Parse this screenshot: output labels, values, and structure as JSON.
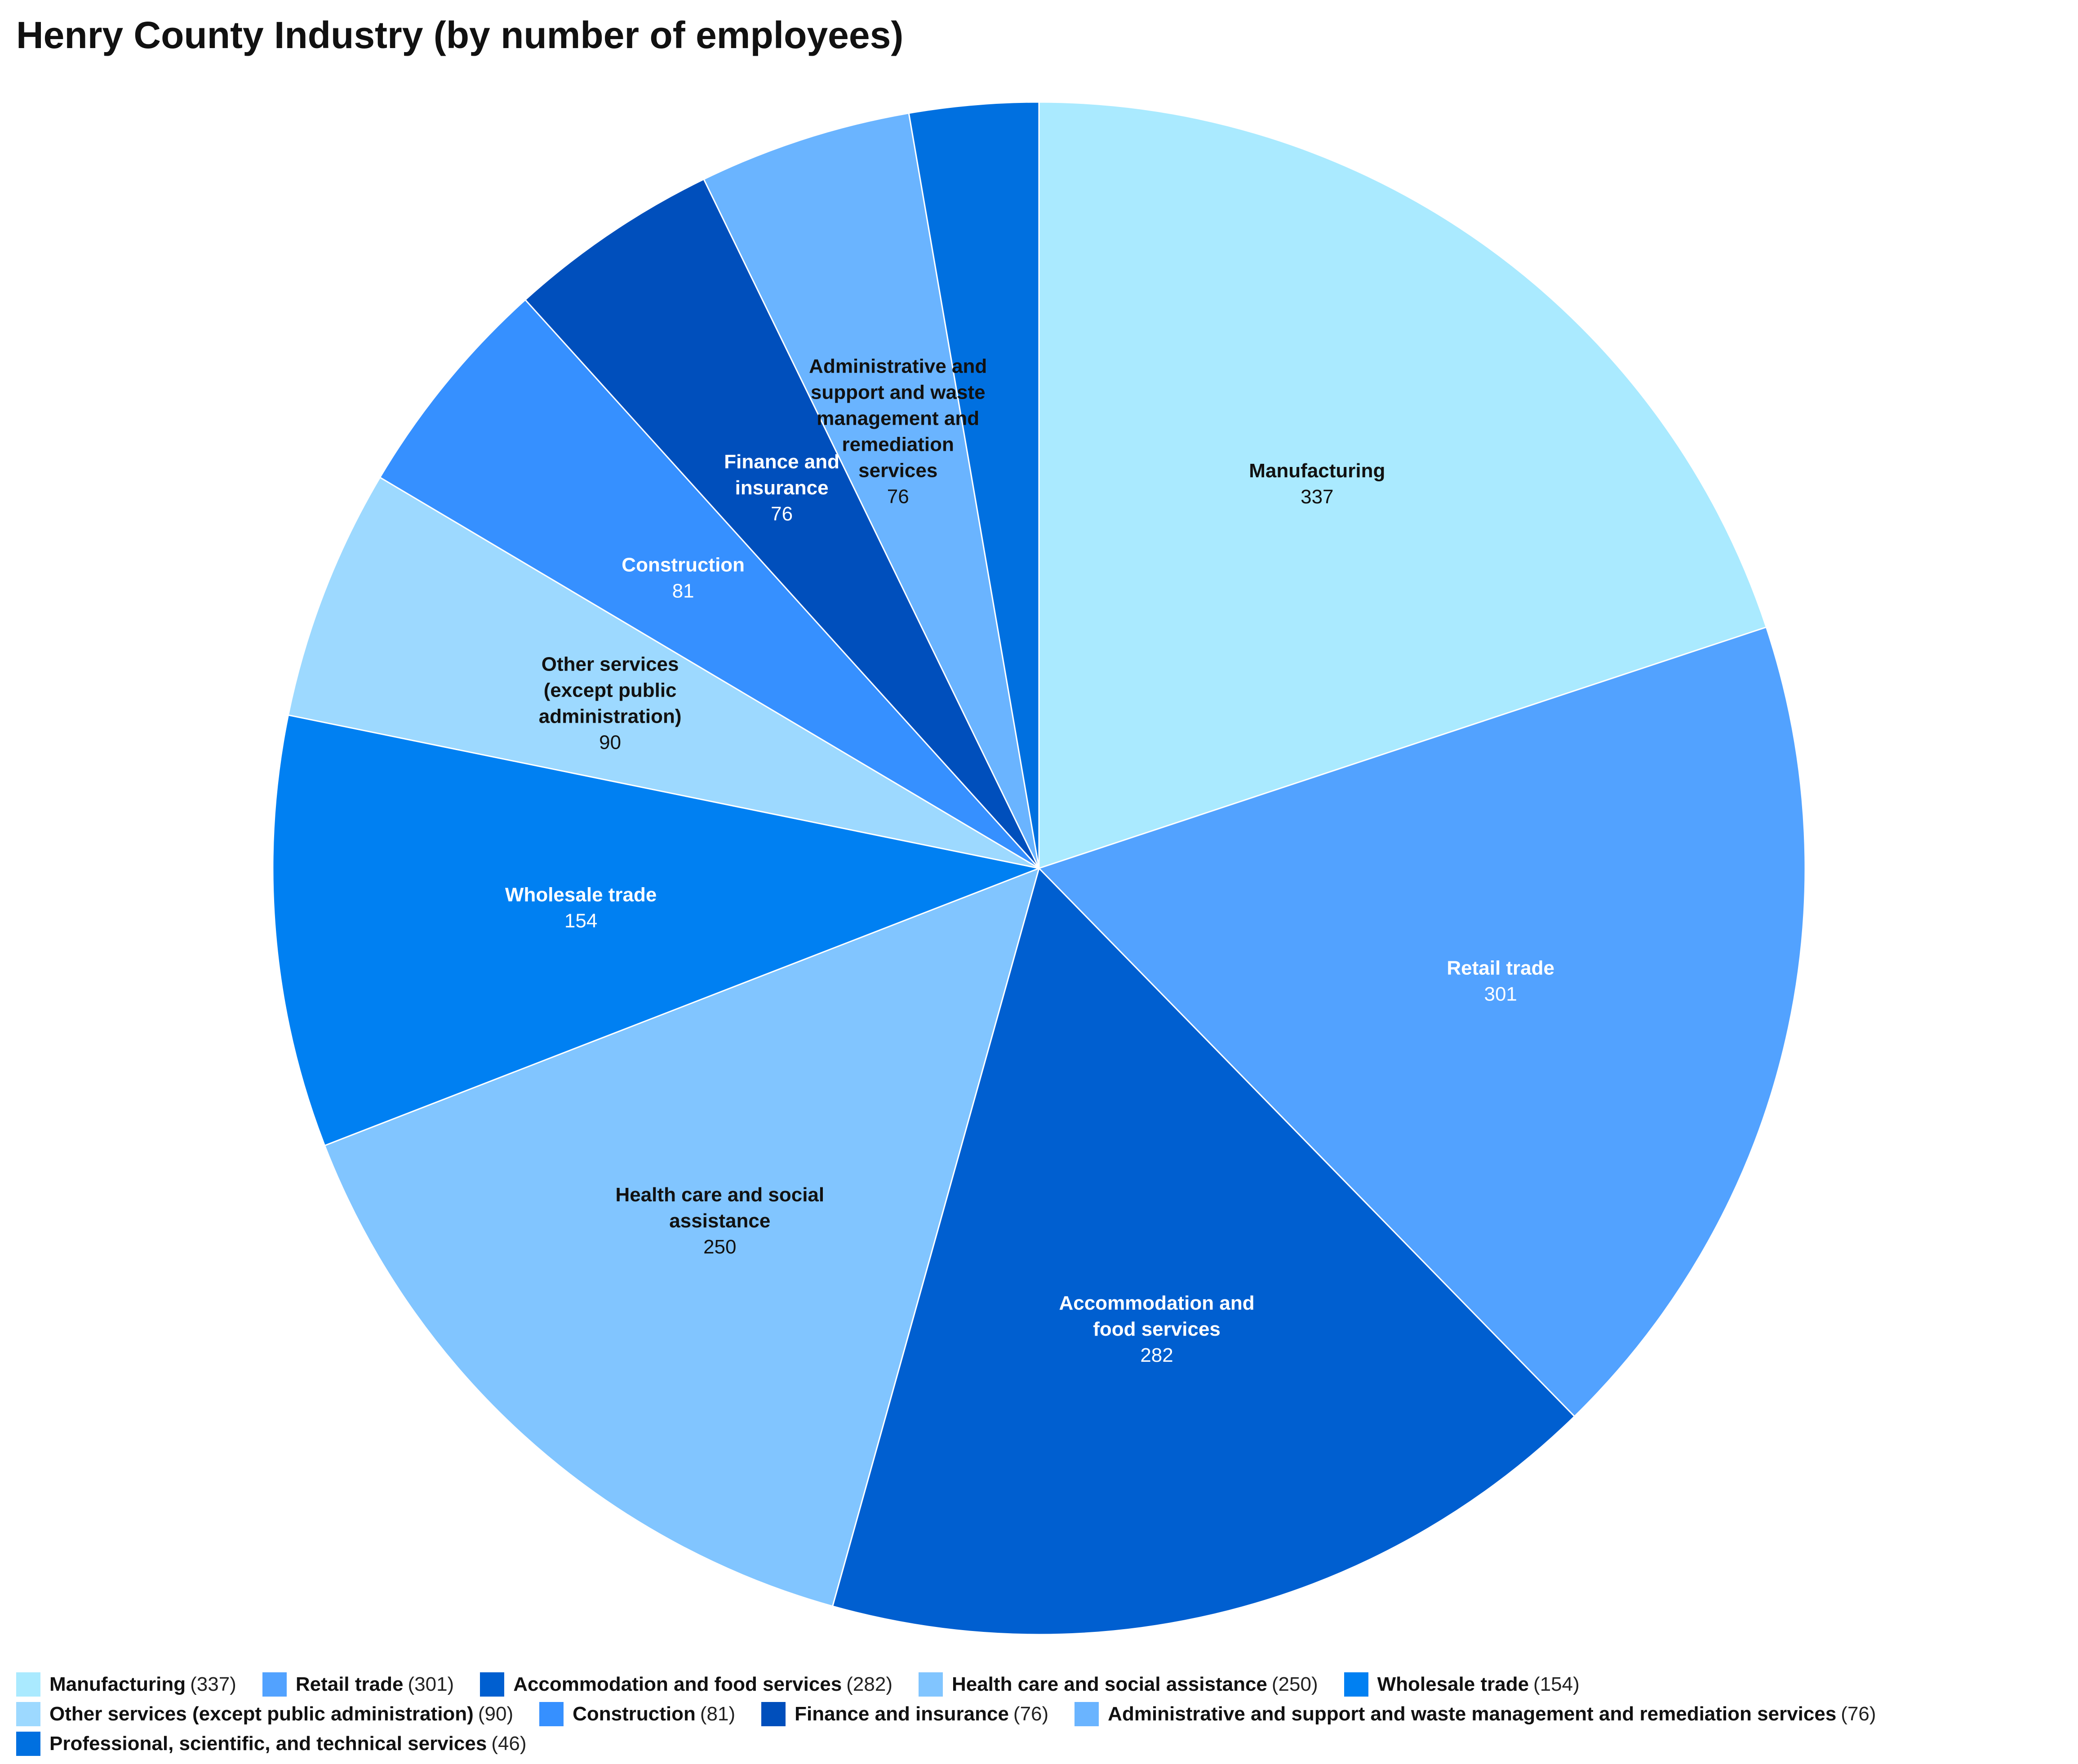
{
  "title": "Henry County Industry (by number of employees)",
  "chart_data": {
    "type": "pie",
    "title": "Henry County Industry (by number of employees)",
    "start_angle_deg": 0,
    "direction": "clockwise",
    "legend_position": "bottom",
    "slices": [
      {
        "label": "Manufacturing",
        "value": 337,
        "color": "#aaeaff",
        "text_color": "#111111"
      },
      {
        "label": "Retail trade",
        "value": 301,
        "color": "#52a2ff",
        "text_color": "#ffffff"
      },
      {
        "label": "Accommodation and food services",
        "value": 282,
        "color": "#005fd0",
        "text_color": "#ffffff"
      },
      {
        "label": "Health care and social assistance",
        "value": 250,
        "color": "#81c5ff",
        "text_color": "#111111"
      },
      {
        "label": "Wholesale trade",
        "value": 154,
        "color": "#0080f2",
        "text_color": "#ffffff"
      },
      {
        "label": "Other services (except public administration)",
        "value": 90,
        "color": "#9dd9ff",
        "text_color": "#111111"
      },
      {
        "label": "Construction",
        "value": 81,
        "color": "#3690ff",
        "text_color": "#ffffff"
      },
      {
        "label": "Finance and insurance",
        "value": 76,
        "color": "#004fbc",
        "text_color": "#ffffff"
      },
      {
        "label": "Administrative and support and waste management and remediation services",
        "value": 76,
        "color": "#6ab4ff",
        "text_color": "#111111"
      },
      {
        "label": "Professional, scientific, and technical services",
        "value": 46,
        "color": "#0070e0",
        "text_color": "#ffffff"
      }
    ],
    "slice_label_lines": [
      [
        "Manufacturing"
      ],
      [
        "Retail trade"
      ],
      [
        "Accommodation and",
        "food services"
      ],
      [
        "Health care and social",
        "assistance"
      ],
      [
        "Wholesale trade"
      ],
      [
        "Other services",
        "(except public",
        "administration)"
      ],
      [
        "Construction"
      ],
      [
        "Finance and",
        "insurance"
      ],
      [
        "Administrative and",
        "support and waste",
        "management and",
        "remediation",
        "services"
      ],
      []
    ],
    "legend_rows": [
      [
        0,
        1,
        2,
        3,
        4
      ],
      [
        5,
        6,
        7,
        8
      ],
      [
        9
      ]
    ]
  }
}
